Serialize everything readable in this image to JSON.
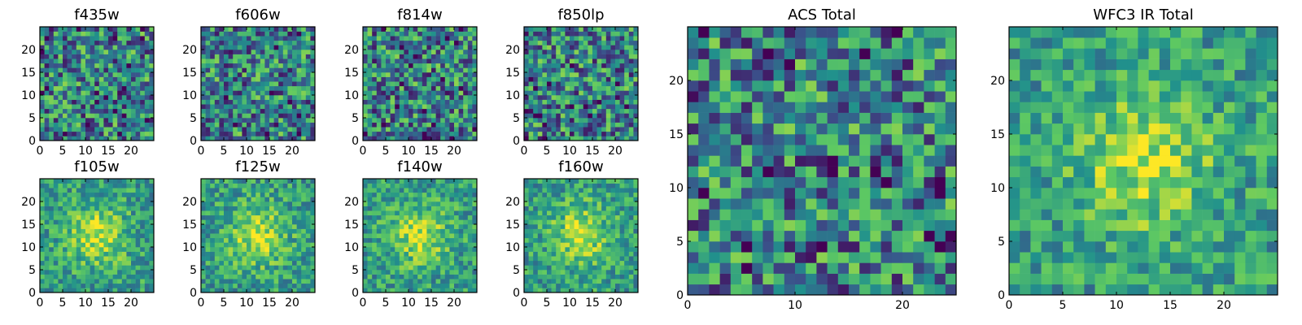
{
  "colormap": [
    "#440154",
    "#3b528b",
    "#21918c",
    "#5ec962",
    "#fde725"
  ],
  "chart_data": [
    {
      "type": "heatmap",
      "title": "f435w",
      "grid_size": 25,
      "xlim": [
        0,
        25
      ],
      "ylim": [
        0,
        25
      ],
      "xticks": [
        0,
        5,
        10,
        15,
        20
      ],
      "yticks": [
        0,
        5,
        10,
        15,
        20
      ],
      "pattern": "noise",
      "seed": 11
    },
    {
      "type": "heatmap",
      "title": "f606w",
      "grid_size": 25,
      "xlim": [
        0,
        25
      ],
      "ylim": [
        0,
        25
      ],
      "xticks": [
        0,
        5,
        10,
        15,
        20
      ],
      "yticks": [
        0,
        5,
        10,
        15,
        20
      ],
      "pattern": "noise",
      "seed": 23
    },
    {
      "type": "heatmap",
      "title": "f814w",
      "grid_size": 25,
      "xlim": [
        0,
        25
      ],
      "ylim": [
        0,
        25
      ],
      "xticks": [
        0,
        5,
        10,
        15,
        20
      ],
      "yticks": [
        0,
        5,
        10,
        15,
        20
      ],
      "pattern": "noise",
      "seed": 37
    },
    {
      "type": "heatmap",
      "title": "f850lp",
      "grid_size": 25,
      "xlim": [
        0,
        25
      ],
      "ylim": [
        0,
        25
      ],
      "xticks": [
        0,
        5,
        10,
        15,
        20
      ],
      "yticks": [
        0,
        5,
        10,
        15,
        20
      ],
      "pattern": "noise",
      "seed": 41
    },
    {
      "type": "heatmap",
      "title": "f105w",
      "grid_size": 25,
      "xlim": [
        0,
        25
      ],
      "ylim": [
        0,
        25
      ],
      "xticks": [
        0,
        5,
        10,
        15,
        20
      ],
      "yticks": [
        0,
        5,
        10,
        15,
        20
      ],
      "pattern": "source",
      "seed": 53
    },
    {
      "type": "heatmap",
      "title": "f125w",
      "grid_size": 25,
      "xlim": [
        0,
        25
      ],
      "ylim": [
        0,
        25
      ],
      "xticks": [
        0,
        5,
        10,
        15,
        20
      ],
      "yticks": [
        0,
        5,
        10,
        15,
        20
      ],
      "pattern": "source",
      "seed": 67
    },
    {
      "type": "heatmap",
      "title": "f140w",
      "grid_size": 25,
      "xlim": [
        0,
        25
      ],
      "ylim": [
        0,
        25
      ],
      "xticks": [
        0,
        5,
        10,
        15,
        20
      ],
      "yticks": [
        0,
        5,
        10,
        15,
        20
      ],
      "pattern": "source",
      "seed": 71
    },
    {
      "type": "heatmap",
      "title": "f160w",
      "grid_size": 25,
      "xlim": [
        0,
        25
      ],
      "ylim": [
        0,
        25
      ],
      "xticks": [
        0,
        5,
        10,
        15,
        20
      ],
      "yticks": [
        0,
        5,
        10,
        15,
        20
      ],
      "pattern": "source",
      "seed": 89
    },
    {
      "type": "heatmap",
      "title": "ACS Total",
      "grid_size": 25,
      "xlim": [
        0,
        25
      ],
      "ylim": [
        0,
        25
      ],
      "xticks": [
        0,
        10,
        20
      ],
      "yticks": [
        0,
        5,
        10,
        15,
        20
      ],
      "pattern": "noise",
      "seed": 97
    },
    {
      "type": "heatmap",
      "title": "WFC3 IR Total",
      "grid_size": 25,
      "xlim": [
        0,
        25
      ],
      "ylim": [
        0,
        25
      ],
      "xticks": [
        0,
        5,
        10,
        15,
        20
      ],
      "yticks": [
        0,
        5,
        10,
        15,
        20
      ],
      "pattern": "source",
      "seed": 103
    }
  ]
}
